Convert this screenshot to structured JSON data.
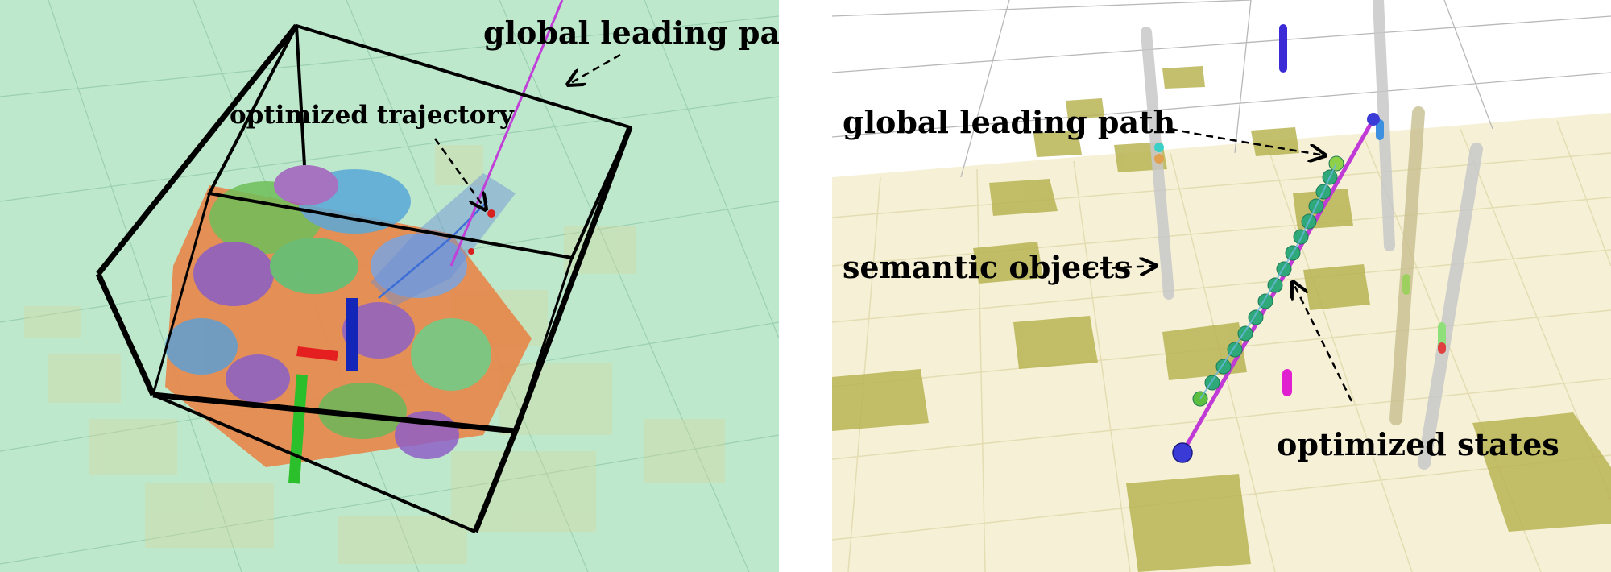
{
  "left_panel": {
    "global_path_label": "global leading path",
    "trajectory_label": "optimized trajectory",
    "background": "#bde8cc"
  },
  "right_panel": {
    "global_path_label": "global leading path",
    "semantic_label": "semantic objects",
    "states_label": "optimized states",
    "background": "#ffffff"
  }
}
